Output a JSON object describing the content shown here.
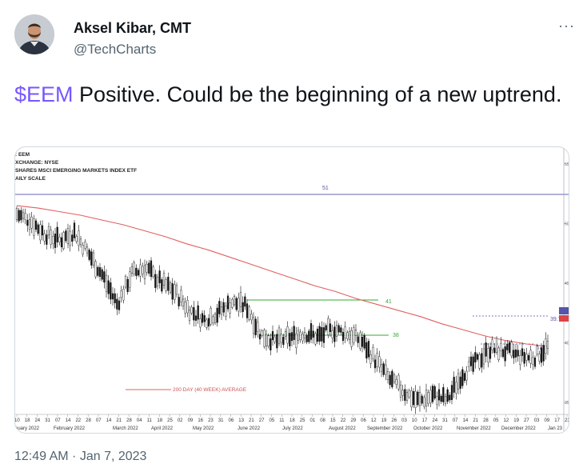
{
  "author": {
    "name": "Aksel Kibar, CMT",
    "handle": "@TechCharts"
  },
  "tweet": {
    "cashtag": "$EEM",
    "text": " Positive. Could be the beginning of a new uptrend.",
    "timestamp": "12:49 AM · Jan 7, 2023"
  },
  "icons": {
    "more": "more-dots-icon",
    "avatar": "person-avatar"
  },
  "colors": {
    "cashtag": "#7856ff",
    "moving_average": "#e06060",
    "support_resistance": "#33aa33",
    "horizontal_line": "#6666bb",
    "dotted_levels": "#7777cc"
  },
  "chart_data": {
    "type": "candlestick",
    "header": [
      ": EEM",
      "XCHANGE: NYSE",
      "SHARES MSCI EMERGING MARKETS INDEX ETF",
      "AILY SCALE"
    ],
    "annotations": {
      "resistance_line": "51",
      "range_top": "41",
      "range_bottom": "38",
      "current_top": "39.7",
      "current_bottom": "37.3",
      "legend": "200 DAY (40 WEEK) AVERAGE"
    },
    "right_axis_ticks": [
      "55",
      "50",
      "45",
      "40",
      "35"
    ],
    "ylim": [
      34,
      56
    ],
    "day_ticks": [
      "10",
      "18",
      "24",
      "31",
      "07",
      "14",
      "22",
      "28",
      "07",
      "14",
      "21",
      "28",
      "04",
      "11",
      "18",
      "25",
      "02",
      "09",
      "16",
      "23",
      "31",
      "06",
      "13",
      "21",
      "27",
      "05",
      "11",
      "18",
      "25",
      "01",
      "08",
      "15",
      "22",
      "29",
      "06",
      "12",
      "19",
      "26",
      "03",
      "10",
      "17",
      "24",
      "31",
      "07",
      "14",
      "21",
      "28",
      "05",
      "12",
      "19",
      "27",
      "03",
      "09",
      "17",
      "23"
    ],
    "months": [
      "nuary 2022",
      "February 2022",
      "March 2022",
      "April 2022",
      "May 2022",
      "June 2022",
      "July 2022",
      "August 2022",
      "September 2022",
      "October 2022",
      "November 2022",
      "December 2022",
      "Jan 23"
    ],
    "price_path_weekly": [
      50.8,
      50.2,
      49.1,
      48.6,
      49.3,
      47.5,
      45.6,
      43.2,
      45.8,
      46.3,
      45.1,
      44.3,
      42.8,
      41.9,
      42.5,
      43.4,
      43.1,
      40.7,
      40.1,
      40.4,
      40.8,
      40.5,
      41.1,
      40.8,
      40.2,
      38.5,
      36.9,
      35.9,
      35.1,
      35.6,
      35.2,
      37.3,
      38.4,
      39.5,
      39.3,
      38.9,
      38.7,
      39.7
    ],
    "ma_path_weekly": [
      51.5,
      51.3,
      51.0,
      50.7,
      50.3,
      49.9,
      49.4,
      48.9,
      48.3,
      47.8,
      47.2,
      46.6,
      46.0,
      45.4,
      44.8,
      44.3,
      43.7,
      43.2,
      42.7,
      42.2,
      41.6,
      41.1,
      40.6,
      40.2,
      39.9,
      39.7
    ]
  }
}
